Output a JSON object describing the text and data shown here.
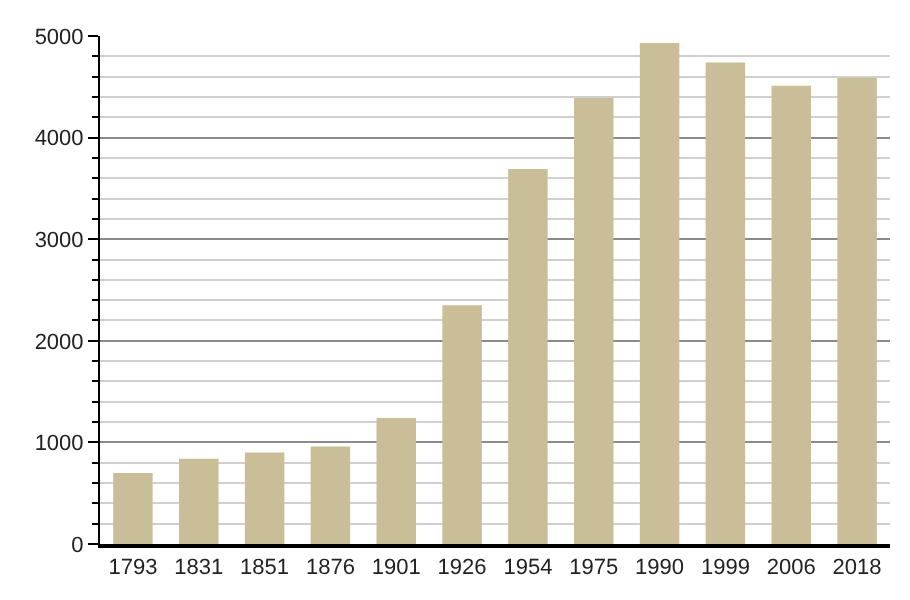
{
  "chart_data": {
    "type": "bar",
    "categories": [
      "1793",
      "1831",
      "1851",
      "1876",
      "1901",
      "1926",
      "1954",
      "1975",
      "1990",
      "1999",
      "2006",
      "2018"
    ],
    "values": [
      700,
      840,
      900,
      960,
      1240,
      2350,
      3690,
      4390,
      4930,
      4740,
      4510,
      4590
    ],
    "color": "#c9be97",
    "ylim": [
      0,
      5000
    ],
    "yticks": [
      0,
      {
        "value": 200,
        "label": null
      },
      {
        "value": 400,
        "label": null
      },
      {
        "value": 600,
        "label": null
      },
      {
        "value": 800,
        "label": null
      },
      1000,
      {
        "value": 1200,
        "label": null
      },
      {
        "value": 1400,
        "label": null
      },
      {
        "value": 1600,
        "label": null
      },
      {
        "value": 1800,
        "label": null
      },
      2000,
      {
        "value": 2200,
        "label": null
      },
      {
        "value": 2400,
        "label": null
      },
      {
        "value": 2600,
        "label": null
      },
      {
        "value": 2800,
        "label": null
      },
      3000,
      {
        "value": 3200,
        "label": null
      },
      {
        "value": 3400,
        "label": null
      },
      {
        "value": 3600,
        "label": null
      },
      {
        "value": 3800,
        "label": null
      },
      4000,
      {
        "value": 4200,
        "label": null
      },
      {
        "value": 4400,
        "label": null
      },
      {
        "value": 4600,
        "label": null
      },
      {
        "value": 4800,
        "label": null
      },
      5000
    ],
    "grid": "y",
    "legend": false
  }
}
